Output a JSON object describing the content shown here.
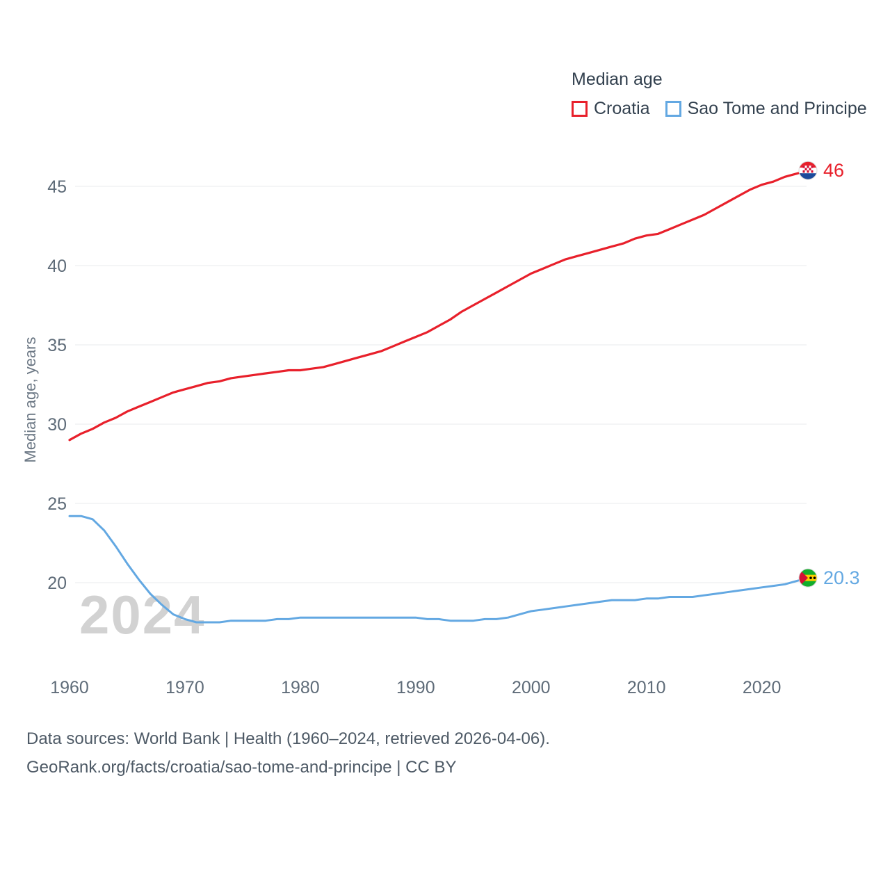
{
  "legend": {
    "title": "Median age",
    "series": [
      {
        "label": "Croatia",
        "color": "#e8202b"
      },
      {
        "label": "Sao Tome and Principe",
        "color": "#63a8e2"
      }
    ]
  },
  "y_axis_label": "Median age, years",
  "watermark": "2024",
  "footer": {
    "line1": "Data sources: World Bank | Health (1960–2024, retrieved 2026-04-06).",
    "line2": "GeoRank.org/facts/croatia/sao-tome-and-principe | CC BY"
  },
  "chart_data": {
    "type": "line",
    "title": "Median age",
    "xlabel": "",
    "ylabel": "Median age, years",
    "x_range": [
      1960,
      2024
    ],
    "x_step": 1,
    "x_ticks": [
      1960,
      1970,
      1980,
      1990,
      2000,
      2010,
      2020
    ],
    "y_ticks": [
      20,
      25,
      30,
      35,
      40,
      45
    ],
    "ylim": [
      16.5,
      47
    ],
    "grid": true,
    "legend_position": "top-right",
    "series": [
      {
        "name": "Croatia",
        "color": "#e8202b",
        "end_label": "46",
        "values": [
          29.0,
          29.4,
          29.7,
          30.1,
          30.4,
          30.8,
          31.1,
          31.4,
          31.7,
          32.0,
          32.2,
          32.4,
          32.6,
          32.7,
          32.9,
          33.0,
          33.1,
          33.2,
          33.3,
          33.4,
          33.4,
          33.5,
          33.6,
          33.8,
          34.0,
          34.2,
          34.4,
          34.6,
          34.9,
          35.2,
          35.5,
          35.8,
          36.2,
          36.6,
          37.1,
          37.5,
          37.9,
          38.3,
          38.7,
          39.1,
          39.5,
          39.8,
          40.1,
          40.4,
          40.6,
          40.8,
          41.0,
          41.2,
          41.4,
          41.7,
          41.9,
          42.0,
          42.3,
          42.6,
          42.9,
          43.2,
          43.6,
          44.0,
          44.4,
          44.8,
          45.1,
          45.3,
          45.6,
          45.8,
          46.0
        ]
      },
      {
        "name": "Sao Tome and Principe",
        "color": "#63a8e2",
        "end_label": "20.3",
        "values": [
          24.2,
          24.2,
          24.0,
          23.3,
          22.3,
          21.2,
          20.2,
          19.3,
          18.6,
          18.0,
          17.7,
          17.5,
          17.5,
          17.5,
          17.6,
          17.6,
          17.6,
          17.6,
          17.7,
          17.7,
          17.8,
          17.8,
          17.8,
          17.8,
          17.8,
          17.8,
          17.8,
          17.8,
          17.8,
          17.8,
          17.8,
          17.7,
          17.7,
          17.6,
          17.6,
          17.6,
          17.7,
          17.7,
          17.8,
          18.0,
          18.2,
          18.3,
          18.4,
          18.5,
          18.6,
          18.7,
          18.8,
          18.9,
          18.9,
          18.9,
          19.0,
          19.0,
          19.1,
          19.1,
          19.1,
          19.2,
          19.3,
          19.4,
          19.5,
          19.6,
          19.7,
          19.8,
          19.9,
          20.1,
          20.3
        ]
      }
    ]
  }
}
